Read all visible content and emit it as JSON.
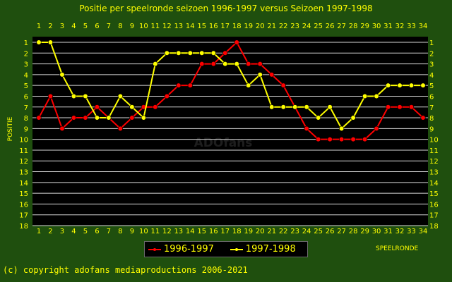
{
  "chart_data": {
    "type": "line",
    "title": "Positie per speelronde seizoen 1996-1997 versus Seizoen 1997-1998",
    "xlabel": "SPEELRONDE",
    "ylabel": "POSITIE",
    "x": [
      1,
      2,
      3,
      4,
      5,
      6,
      7,
      8,
      9,
      10,
      11,
      12,
      13,
      14,
      15,
      16,
      17,
      18,
      19,
      20,
      21,
      22,
      23,
      24,
      25,
      26,
      27,
      28,
      29,
      30,
      31,
      32,
      33,
      34
    ],
    "xlim": [
      1,
      34
    ],
    "ylim": [
      1,
      18
    ],
    "y_inverted": true,
    "grid": true,
    "legend_position": "bottom-center",
    "watermark": "ADOfans",
    "series": [
      {
        "name": "1996-1997",
        "color": "#ff0000",
        "values": [
          8,
          6,
          9,
          8,
          8,
          7,
          8,
          9,
          8,
          7,
          7,
          6,
          5,
          5,
          3,
          3,
          2,
          1,
          3,
          3,
          4,
          5,
          7,
          9,
          10,
          10,
          10,
          10,
          10,
          9,
          7,
          7,
          7,
          8
        ]
      },
      {
        "name": "1997-1998",
        "color": "#ffff00",
        "values": [
          1,
          1,
          4,
          6,
          6,
          8,
          8,
          6,
          7,
          8,
          3,
          2,
          2,
          2,
          2,
          2,
          3,
          3,
          5,
          4,
          7,
          7,
          7,
          7,
          8,
          7,
          9,
          8,
          6,
          6,
          5,
          5,
          5,
          5
        ]
      }
    ]
  },
  "footer": {
    "copyright": "(c) copyright adofans mediaproductions 2006-2021"
  },
  "colors": {
    "background": "#1f4f0e",
    "plot": "#000000",
    "text": "#ffff00",
    "grid": "#ffffff"
  }
}
